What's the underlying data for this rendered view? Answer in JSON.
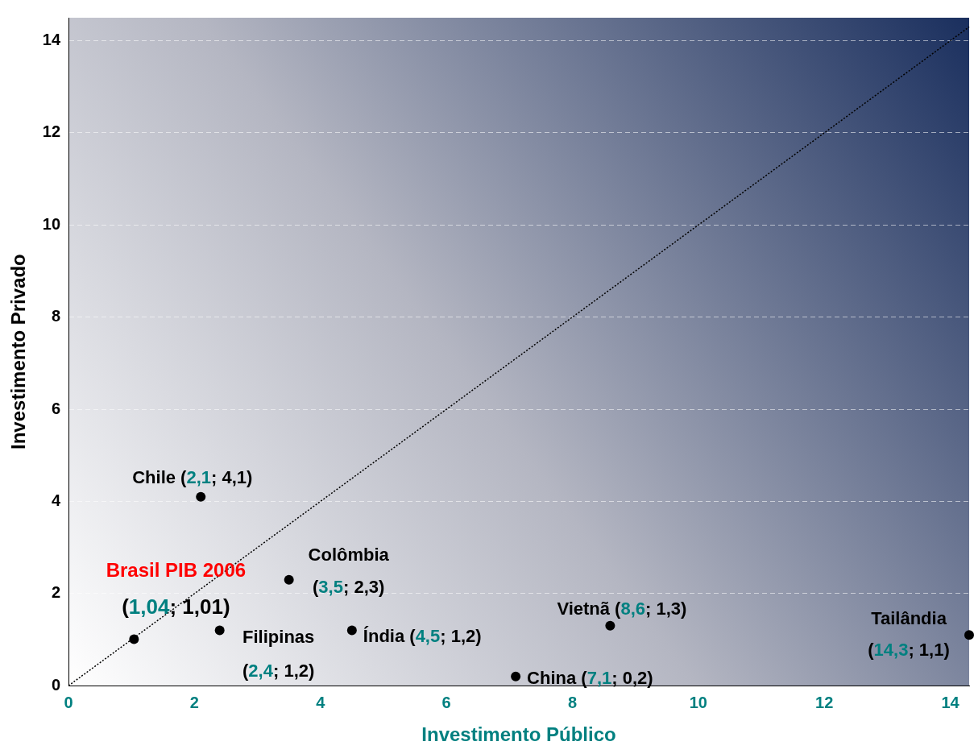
{
  "chart_data": {
    "type": "scatter",
    "xlabel": "Investimento Público",
    "ylabel": "Investimento Privado",
    "xlim": [
      0,
      14.3
    ],
    "ylim": [
      0,
      14.5
    ],
    "xticks": [
      0,
      2,
      4,
      6,
      8,
      10,
      12,
      14
    ],
    "yticks": [
      0,
      2,
      4,
      6,
      8,
      10,
      12,
      14
    ],
    "grid": "y",
    "legend": false,
    "marker": "circle",
    "series": [
      {
        "color": "#000000",
        "x": [
          1.04,
          2.1,
          3.5,
          2.4,
          4.5,
          7.1,
          8.6,
          14.3
        ],
        "values": [
          1.01,
          4.1,
          2.3,
          1.2,
          1.2,
          0.2,
          1.3,
          1.1
        ]
      },
      {
        "type": "line",
        "color": "#000000",
        "line_style": "dotted",
        "marker": "none",
        "x": [
          0,
          14.3
        ],
        "values": [
          0,
          14.3
        ]
      }
    ],
    "annotations": [
      {
        "text": "Brasil PIB 2006\n(1,04; 1,01)",
        "x": 1.04,
        "y": 1.01
      },
      {
        "text": "Chile (2,1; 4,1)",
        "x": 2.1,
        "y": 4.1
      },
      {
        "text": "Colômbia\n(3,5; 2,3)",
        "x": 3.5,
        "y": 2.3
      },
      {
        "text": "Filipinas\n(2,4; 1,2)",
        "x": 2.4,
        "y": 1.2
      },
      {
        "text": "Índia (4,5; 1,2)",
        "x": 4.5,
        "y": 1.2
      },
      {
        "text": "China (7,1; 0,2)",
        "x": 7.1,
        "y": 0.2
      },
      {
        "text": "Vietnã (8,6; 1,3)",
        "x": 8.6,
        "y": 1.3
      },
      {
        "text": "Tailândia\n(14,3; 1,1)",
        "x": 14.3,
        "y": 1.1
      }
    ]
  }
}
